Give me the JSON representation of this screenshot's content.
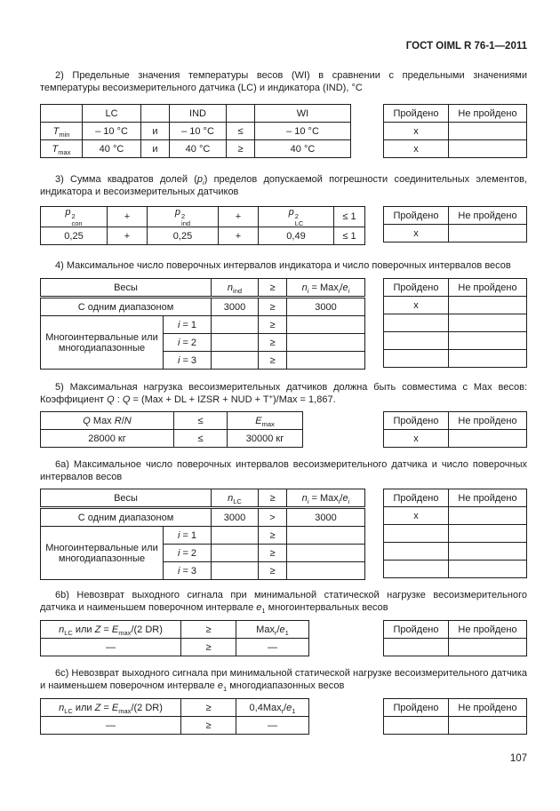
{
  "header": {
    "title": "ГОСТ OIML R 76-1—2011"
  },
  "footer": {
    "page_number": "107"
  },
  "pass_header": {
    "pass": "Пройдено",
    "fail": "Не пройдено"
  },
  "sections": {
    "s2": {
      "para": [
        {
          "t": "2) Предельные значения температуры весов (WI) в сравнении с предельными значениями температуры весоизмерительного датчика (LC) и индикатора (IND), °C"
        }
      ],
      "table": {
        "header": [
          "",
          "LC",
          "",
          "IND",
          "",
          "WI"
        ],
        "rows": [
          {
            "label": [
              {
                "t": "T",
                "i": true,
                "sub": "min"
              }
            ],
            "cells": [
              "– 10 °C",
              "и",
              "– 10 °C",
              "≤",
              "– 10 °C"
            ]
          },
          {
            "label": [
              {
                "t": "T",
                "i": true,
                "sub": "max"
              }
            ],
            "cells": [
              "40 °C",
              "и",
              "40 °C",
              "≥",
              "40 °C"
            ]
          }
        ]
      },
      "pass_rows": [
        {
          "p": "x",
          "f": ""
        },
        {
          "p": "x",
          "f": ""
        }
      ]
    },
    "s3": {
      "para": [
        {
          "t": "3) Сумма квадратов долей ("
        },
        {
          "t": "p",
          "i": true,
          "sub": "i",
          "subi": true
        },
        {
          "t": ") пределов допускаемой погрешности соединительных элементов, индикатора  и весоизмерительных датчиков"
        }
      ],
      "table": {
        "header": [
          [
            {
              "t": "p",
              "i": true,
              "sup": "2",
              "sub": "con"
            }
          ],
          "+",
          [
            {
              "t": "p",
              "i": true,
              "sup": "2",
              "sub": "ind"
            }
          ],
          "+",
          [
            {
              "t": "p",
              "i": true,
              "sup": "2",
              "sub": "LC"
            }
          ],
          "≤ 1"
        ],
        "row": [
          "0,25",
          "+",
          "0,25",
          "+",
          "0,49",
          "≤ 1"
        ]
      },
      "pass_rows": [
        {
          "p": "x",
          "f": ""
        }
      ]
    },
    "s4": {
      "para": [
        {
          "t": "4) Максимальное число поверочных интервалов индикатора и число поверочных интервалов весов"
        }
      ],
      "table": {
        "scales_label": "Весы",
        "n_label": [
          {
            "t": "n",
            "i": true,
            "sub": "ind"
          }
        ],
        "cmp_label": "≥",
        "ni_label": [
          {
            "t": "n",
            "i": true,
            "sub": "i",
            "subi": true
          },
          {
            "t": " = Max",
            "sub": "i",
            "subi": true
          },
          {
            "t": "/"
          },
          {
            "t": "e",
            "i": true,
            "sub": "i",
            "subi": true
          }
        ],
        "single": {
          "label": "С одним диапазоном",
          "n": "3000",
          "cmp": "≥",
          "ni": "3000"
        },
        "multi_label": "Многоинтервальные или многодиапазонные",
        "i_rows": [
          {
            "label": [
              {
                "t": "i",
                "i": true
              },
              {
                "t": " = 1"
              }
            ],
            "n": "",
            "cmp": "≥",
            "ni": ""
          },
          {
            "label": [
              {
                "t": "i",
                "i": true
              },
              {
                "t": " = 2"
              }
            ],
            "n": "",
            "cmp": "≥",
            "ni": ""
          },
          {
            "label": [
              {
                "t": "i",
                "i": true
              },
              {
                "t": " = 3"
              }
            ],
            "n": "",
            "cmp": "≥",
            "ni": ""
          }
        ]
      },
      "pass_rows": [
        {
          "p": "x",
          "f": ""
        },
        {
          "p": "",
          "f": ""
        },
        {
          "p": "",
          "f": ""
        },
        {
          "p": "",
          "f": ""
        }
      ]
    },
    "s5": {
      "para": [
        {
          "t": "5) Максимальная нагрузка весоизмерительных датчиков должна быть совместима с Max весов: Коэффициент "
        },
        {
          "t": "Q",
          "i": true
        },
        {
          "t": " : "
        },
        {
          "t": "Q",
          "i": true
        },
        {
          "t": " = (Max + DL + IZSR + NUD + T",
          "sup": "+"
        },
        {
          "t": ")/Max = 1,867."
        }
      ],
      "table": {
        "header": [
          [
            {
              "t": "Q",
              "i": true
            },
            {
              "t": " Max "
            },
            {
              "t": "R",
              "i": true
            },
            {
              "t": "/"
            },
            {
              "t": "N",
              "i": true
            }
          ],
          "≤",
          [
            {
              "t": "E",
              "i": true,
              "sub": "max"
            }
          ]
        ],
        "row": [
          "28000 кг",
          "≤",
          "30000 кг"
        ]
      },
      "pass_rows": [
        {
          "p": "x",
          "f": ""
        }
      ]
    },
    "s6a": {
      "para": [
        {
          "t": "6а) Максимальное число поверочных интервалов весоизмерительного датчика и число поверочных интервалов весов"
        }
      ],
      "table": {
        "scales_label": "Весы",
        "n_label": [
          {
            "t": "n",
            "i": true,
            "sub": "LC"
          }
        ],
        "cmp_label": "≥",
        "ni_label": [
          {
            "t": "n",
            "i": true,
            "sub": "i",
            "subi": true
          },
          {
            "t": " = Max",
            "sub": "i",
            "subi": true
          },
          {
            "t": "/"
          },
          {
            "t": "e",
            "i": true,
            "sub": "i",
            "subi": true
          }
        ],
        "single": {
          "label": "С одним диапазоном",
          "n": "3000",
          "cmp": ">",
          "ni": "3000"
        },
        "multi_label": "Многоинтервальные или многодиапазонные",
        "i_rows": [
          {
            "label": [
              {
                "t": "i",
                "i": true
              },
              {
                "t": " = 1"
              }
            ],
            "n": "",
            "cmp": "≥",
            "ni": ""
          },
          {
            "label": [
              {
                "t": "i",
                "i": true
              },
              {
                "t": " = 2"
              }
            ],
            "n": "",
            "cmp": "≥",
            "ni": ""
          },
          {
            "label": [
              {
                "t": "i",
                "i": true
              },
              {
                "t": " = 3"
              }
            ],
            "n": "",
            "cmp": "≥",
            "ni": ""
          }
        ]
      },
      "pass_rows": [
        {
          "p": "x",
          "f": ""
        },
        {
          "p": "",
          "f": ""
        },
        {
          "p": "",
          "f": ""
        },
        {
          "p": "",
          "f": ""
        }
      ]
    },
    "s6b": {
      "para": [
        {
          "t": "6b) Невозврат выходного сигнала при минимальной статической нагрузке весоизмерительного датчика и наименьшем поверочном интервале "
        },
        {
          "t": "e",
          "i": true,
          "sub": "1"
        },
        {
          "t": "  многоинтервальных весов"
        }
      ],
      "table": {
        "header": [
          [
            {
              "t": "n",
              "i": true,
              "sub": "LC"
            },
            {
              "t": " или "
            },
            {
              "t": "Z",
              "i": true
            },
            {
              "t": " = "
            },
            {
              "t": "E",
              "i": true,
              "sub": "max"
            },
            {
              "t": "/(2 DR)"
            }
          ],
          "≥",
          [
            {
              "t": "Max",
              "sub": "r"
            },
            {
              "t": "/"
            },
            {
              "t": "e",
              "i": true,
              "sub": "1"
            }
          ]
        ],
        "row": [
          "—",
          "≥",
          "—"
        ]
      },
      "pass_rows": [
        {
          "p": "",
          "f": ""
        }
      ]
    },
    "s6c": {
      "para": [
        {
          "t": "6с) Невозврат выходного сигнала при минимальной статической нагрузке весоизмерительного датчика и наименьшем поверочном интервале  "
        },
        {
          "t": "e",
          "i": true,
          "sub": "1"
        },
        {
          "t": " многодиапазонных весов"
        }
      ],
      "table": {
        "header": [
          [
            {
              "t": "n",
              "i": true,
              "sub": "LC"
            },
            {
              "t": " или "
            },
            {
              "t": "Z",
              "i": true
            },
            {
              "t": " = "
            },
            {
              "t": "E",
              "i": true,
              "sub": "max"
            },
            {
              "t": "/(2 DR)"
            }
          ],
          "≥",
          [
            {
              "t": "0,4Max",
              "sub": "r"
            },
            {
              "t": "/"
            },
            {
              "t": "e",
              "i": true,
              "sub": "1"
            }
          ]
        ],
        "row": [
          "—",
          "≥",
          "—"
        ]
      },
      "pass_rows": [
        {
          "p": "",
          "f": ""
        }
      ]
    }
  }
}
